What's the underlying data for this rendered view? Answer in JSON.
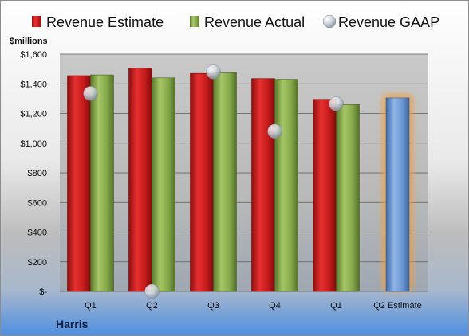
{
  "chart_data": {
    "type": "bar",
    "ylabel": "$millions",
    "company": "Harris",
    "ylim": [
      0,
      1600
    ],
    "ytick_step": 200,
    "ytick_labels": [
      "$-",
      "$200",
      "$400",
      "$600",
      "$800",
      "$1,000",
      "$1,200",
      "$1,400",
      "$1,600"
    ],
    "grid": true,
    "legend_position": "top",
    "categories": [
      "Q1",
      "Q2",
      "Q3",
      "Q4",
      "Q1",
      "Q2 Estimate"
    ],
    "series": [
      {
        "name": "Revenue Estimate",
        "kind": "bar",
        "color": "#d42424",
        "values": [
          1455,
          1505,
          1470,
          1435,
          1295,
          null
        ]
      },
      {
        "name": "Revenue Actual",
        "kind": "bar",
        "color": "#8aad4f",
        "values": [
          1460,
          1440,
          1475,
          1430,
          1260,
          1305
        ]
      },
      {
        "name": "Revenue GAAP",
        "kind": "bubble",
        "color": "#c8d0da",
        "values": [
          1335,
          0,
          1480,
          1080,
          1265,
          null
        ]
      }
    ],
    "highlight_category": "Q2 Estimate",
    "highlight_color": "#6f9bd6",
    "highlight_glow": "#f0a040"
  }
}
